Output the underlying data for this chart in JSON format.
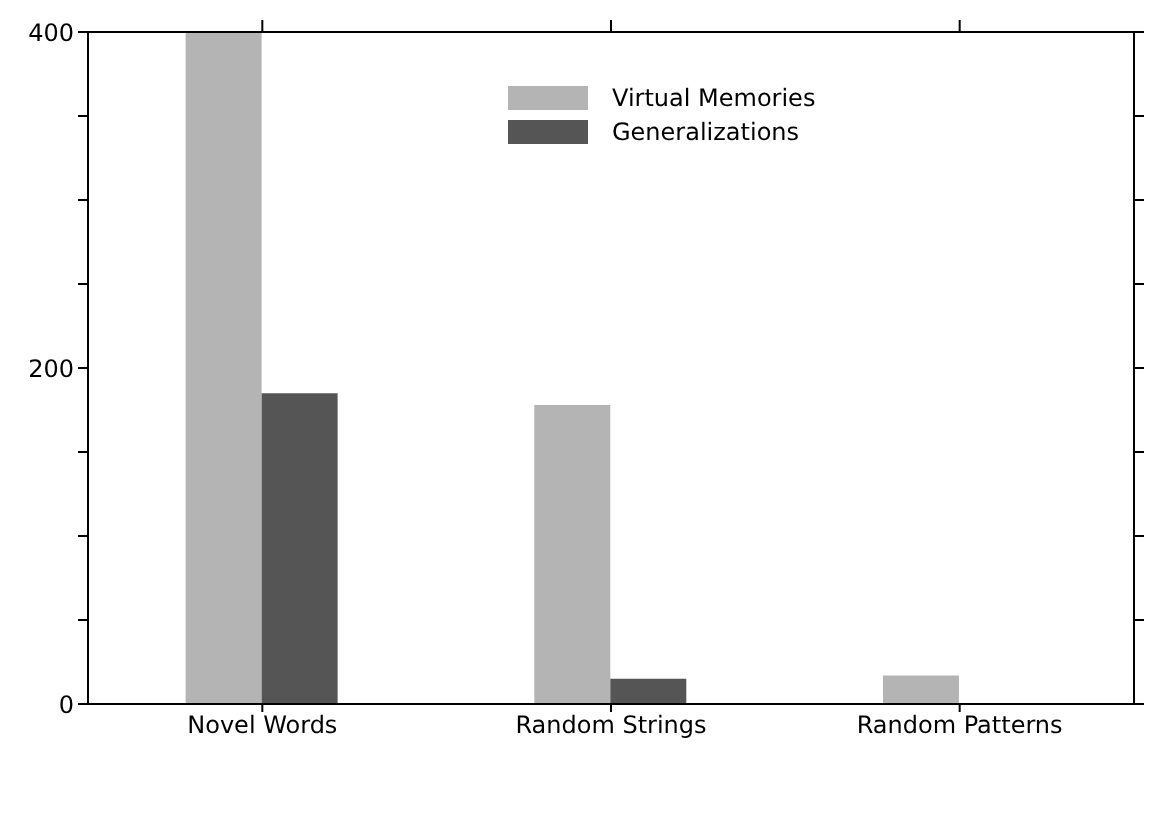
{
  "chart_data": {
    "type": "bar",
    "categories": [
      "Novel Words",
      "Random Strings",
      "Random Patterns"
    ],
    "series": [
      {
        "name": "Virtual Memories",
        "color": "#b4b4b4",
        "values": [
          400,
          178,
          17
        ]
      },
      {
        "name": "Generalizations",
        "color": "#555555",
        "values": [
          185,
          15,
          0
        ]
      }
    ],
    "ylim": [
      0,
      400
    ],
    "yticks": [
      0,
      {
        "value": 50,
        "label": null
      },
      {
        "value": 100,
        "label": null
      },
      {
        "value": 150,
        "label": null
      },
      200,
      {
        "value": 250,
        "label": null
      },
      {
        "value": 300,
        "label": null
      },
      {
        "value": 350,
        "label": null
      },
      400
    ],
    "grid": false,
    "legend": "top right"
  }
}
